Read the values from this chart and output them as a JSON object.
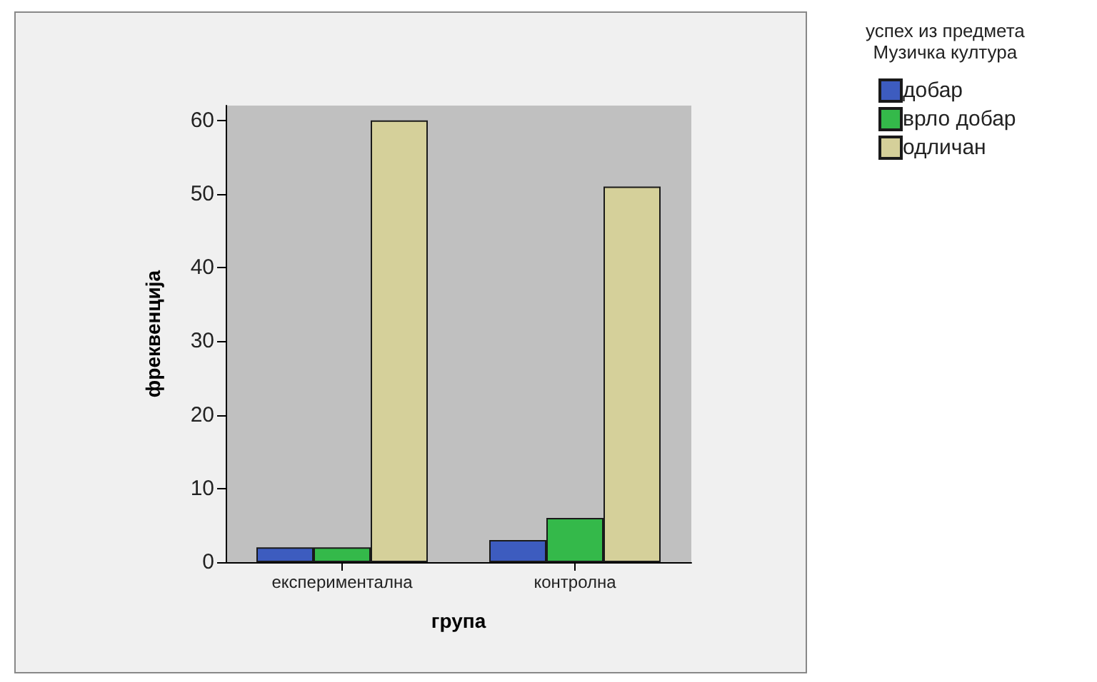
{
  "chart_data": {
    "type": "bar",
    "xlabel": "група",
    "ylabel": "фреквенција",
    "legend_title": "успех из предмета\nМузичка култура",
    "categories": [
      "експериментална",
      "контролна"
    ],
    "series": [
      {
        "name": "добар",
        "color": "#3d5cbf",
        "values": [
          2,
          3
        ]
      },
      {
        "name": "врло добар",
        "color": "#34b94a",
        "values": [
          2,
          6
        ]
      },
      {
        "name": "одличан",
        "color": "#d5d09a",
        "values": [
          60,
          51
        ]
      }
    ],
    "ylim": [
      0,
      62
    ],
    "yticks": [
      0,
      10,
      20,
      30,
      40,
      50,
      60
    ],
    "legend": "right"
  }
}
